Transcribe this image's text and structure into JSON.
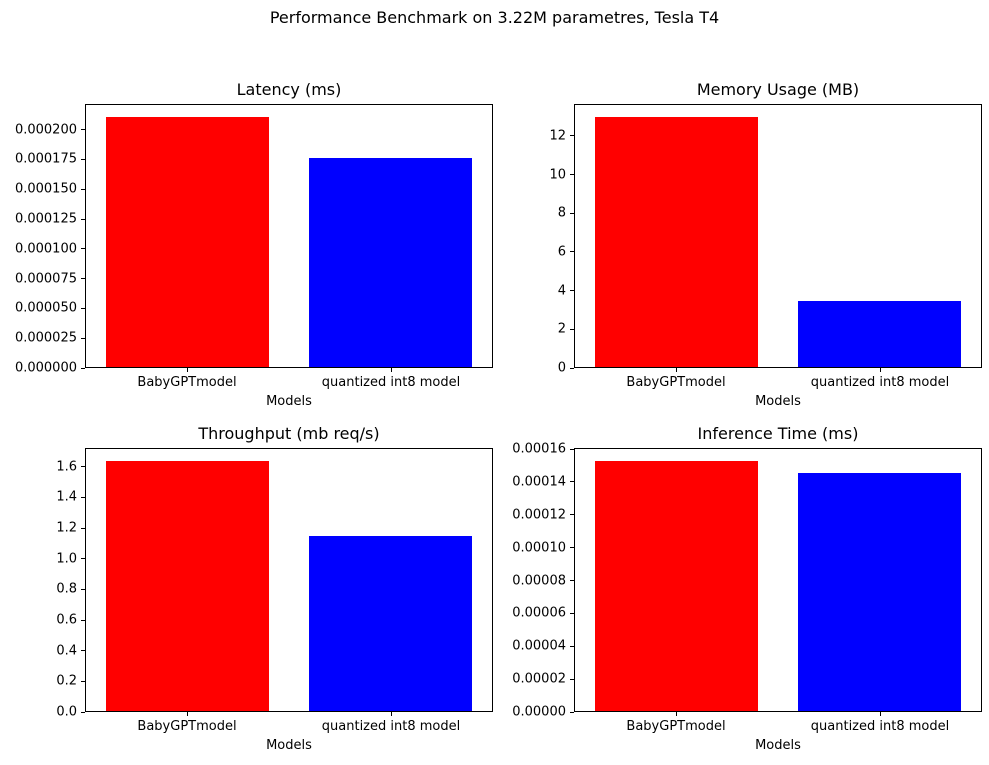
{
  "figure": {
    "suptitle": "Performance Benchmark on 3.22M parametres, Tesla T4",
    "background_color": "#ffffff",
    "text_color": "#000000"
  },
  "chart_data": [
    {
      "type": "bar",
      "title": "Latency (ms)",
      "xlabel": "Models",
      "categories": [
        "BabyGPTmodel",
        "quantized int8 model"
      ],
      "values": [
        0.000211,
        0.000177
      ],
      "bar_colors": [
        "#ff0000",
        "#0000ff"
      ],
      "ylim": [
        0,
        0.00022155
      ],
      "grid": false,
      "legend": null,
      "yticks": [
        {
          "value": 0.0,
          "label": "0.000000"
        },
        {
          "value": 2.5e-05,
          "label": "0.000025"
        },
        {
          "value": 5e-05,
          "label": "0.000050"
        },
        {
          "value": 7.5e-05,
          "label": "0.000075"
        },
        {
          "value": 0.0001,
          "label": "0.000100"
        },
        {
          "value": 0.000125,
          "label": "0.000125"
        },
        {
          "value": 0.00015,
          "label": "0.000150"
        },
        {
          "value": 0.000175,
          "label": "0.000175"
        },
        {
          "value": 0.0002,
          "label": "0.000200"
        }
      ]
    },
    {
      "type": "bar",
      "title": "Memory Usage (MB)",
      "xlabel": "Models",
      "categories": [
        "BabyGPTmodel",
        "quantized int8 model"
      ],
      "values": [
        13.0,
        3.45
      ],
      "bar_colors": [
        "#ff0000",
        "#0000ff"
      ],
      "ylim": [
        0,
        13.65
      ],
      "grid": false,
      "legend": null,
      "yticks": [
        {
          "value": 0,
          "label": "0"
        },
        {
          "value": 2,
          "label": "2"
        },
        {
          "value": 4,
          "label": "4"
        },
        {
          "value": 6,
          "label": "6"
        },
        {
          "value": 8,
          "label": "8"
        },
        {
          "value": 10,
          "label": "10"
        },
        {
          "value": 12,
          "label": "12"
        }
      ]
    },
    {
      "type": "bar",
      "title": "Throughput (mb req/s)",
      "xlabel": "Models",
      "categories": [
        "BabyGPTmodel",
        "quantized int8 model"
      ],
      "values": [
        1.64,
        1.15
      ],
      "bar_colors": [
        "#ff0000",
        "#0000ff"
      ],
      "ylim": [
        0,
        1.722
      ],
      "grid": false,
      "legend": null,
      "yticks": [
        {
          "value": 0.0,
          "label": "0.0"
        },
        {
          "value": 0.2,
          "label": "0.2"
        },
        {
          "value": 0.4,
          "label": "0.4"
        },
        {
          "value": 0.6,
          "label": "0.6"
        },
        {
          "value": 0.8,
          "label": "0.8"
        },
        {
          "value": 1.0,
          "label": "1.0"
        },
        {
          "value": 1.2,
          "label": "1.2"
        },
        {
          "value": 1.4,
          "label": "1.4"
        },
        {
          "value": 1.6,
          "label": "1.6"
        }
      ]
    },
    {
      "type": "bar",
      "title": "Inference Time (ms)",
      "xlabel": "Models",
      "categories": [
        "BabyGPTmodel",
        "quantized int8 model"
      ],
      "values": [
        0.000153,
        0.000146
      ],
      "bar_colors": [
        "#ff0000",
        "#0000ff"
      ],
      "ylim": [
        0,
        0.00016065
      ],
      "grid": false,
      "legend": null,
      "yticks": [
        {
          "value": 0.0,
          "label": "0.00000"
        },
        {
          "value": 2e-05,
          "label": "0.00002"
        },
        {
          "value": 4e-05,
          "label": "0.00004"
        },
        {
          "value": 6e-05,
          "label": "0.00006"
        },
        {
          "value": 8e-05,
          "label": "0.00008"
        },
        {
          "value": 0.0001,
          "label": "0.00010"
        },
        {
          "value": 0.00012,
          "label": "0.00012"
        },
        {
          "value": 0.00014,
          "label": "0.00014"
        },
        {
          "value": 0.00016,
          "label": "0.00016"
        }
      ]
    }
  ]
}
